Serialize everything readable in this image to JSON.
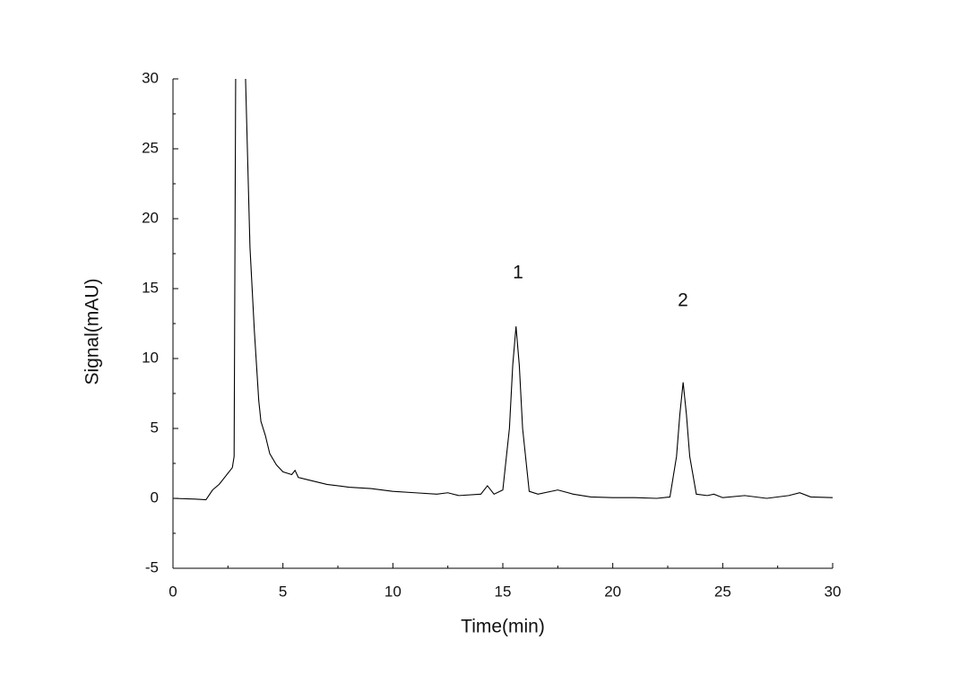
{
  "chart_data": {
    "type": "line",
    "x_label": "Time(min)",
    "y_label": "Signal(mAU)",
    "annotations": [
      "1",
      "2"
    ],
    "xlim": [
      0,
      30
    ],
    "ylim": [
      -5,
      30
    ],
    "xticks": [
      0,
      5,
      10,
      15,
      20,
      25,
      30
    ],
    "yticks": [
      -5,
      0,
      5,
      10,
      15,
      20,
      25,
      30
    ],
    "xminorticks": [
      2.5,
      7.5,
      12.5,
      17.5,
      22.5,
      27.5
    ],
    "yminorticks": [
      -2.5,
      2.5,
      7.5,
      12.5,
      17.5,
      22.5,
      27.5
    ],
    "color": "#000000",
    "x": [
      0,
      1,
      1.5,
      1.8,
      2.1,
      2.4,
      2.7,
      2.78,
      2.85,
      3.0,
      3.3,
      3.5,
      3.7,
      3.9,
      4.0,
      4.2,
      4.4,
      4.7,
      5.0,
      5.4,
      5.55,
      5.7,
      6.2,
      7,
      8,
      9,
      10,
      11,
      12,
      12.5,
      13,
      14,
      14.3,
      14.6,
      15.0,
      15.3,
      15.45,
      15.6,
      15.75,
      15.9,
      16.2,
      16.6,
      17.5,
      18.2,
      19,
      20,
      21,
      22,
      22.6,
      22.9,
      23.05,
      23.2,
      23.35,
      23.5,
      23.8,
      24.3,
      24.6,
      25,
      26,
      27,
      28,
      28.5,
      29,
      30
    ],
    "values": [
      0,
      -0.05,
      -0.1,
      0.6,
      1.0,
      1.6,
      2.2,
      3,
      30,
      null,
      30,
      18,
      12,
      7,
      5.5,
      4.5,
      3.2,
      2.4,
      1.9,
      1.7,
      2.0,
      1.5,
      1.3,
      1.0,
      0.8,
      0.7,
      0.5,
      0.4,
      0.3,
      0.4,
      0.2,
      0.3,
      0.9,
      0.3,
      0.6,
      5,
      9.5,
      12.3,
      9.5,
      5,
      0.5,
      0.3,
      0.6,
      0.3,
      0.1,
      0.05,
      0.05,
      0,
      0.1,
      3,
      6,
      8.3,
      6,
      3,
      0.3,
      0.2,
      0.3,
      0.05,
      0.2,
      0,
      0.2,
      0.4,
      0.1,
      0.05
    ]
  }
}
